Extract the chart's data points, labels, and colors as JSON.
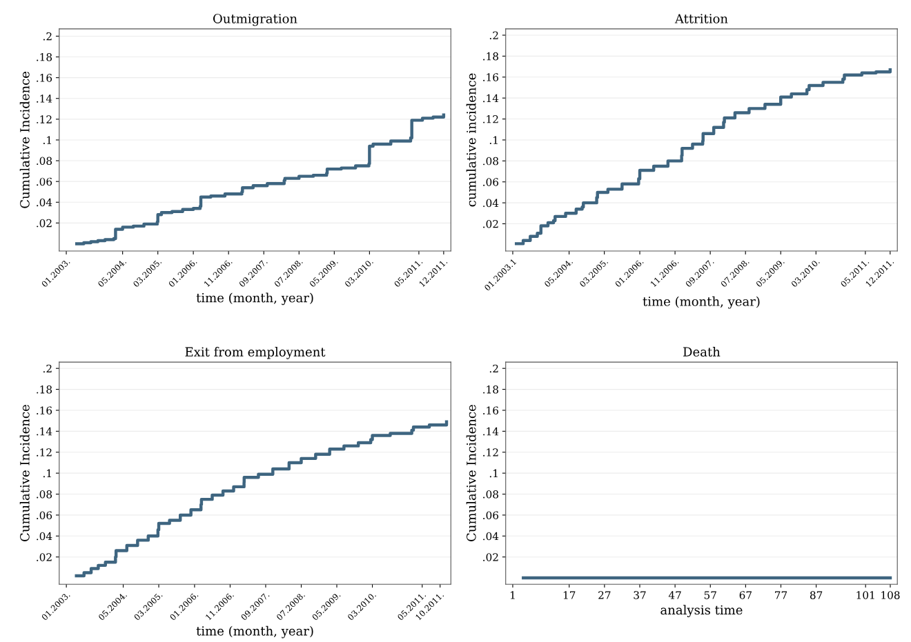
{
  "chart_data": [
    {
      "type": "step",
      "title": "Outmigration",
      "xlabel": "time (month, year)",
      "ylabel": "Cumulative Incidence",
      "color": "#3e6580",
      "grid": "y",
      "xlim": [
        "2002-11",
        "2012-02"
      ],
      "ylim": [
        -0.007,
        0.207
      ],
      "xticks": [
        {
          "value": "2003-01",
          "label": "01.2003."
        },
        {
          "value": "2004-05",
          "label": "05.2004."
        },
        {
          "value": "2005-03",
          "label": "03.2005."
        },
        {
          "value": "2006-01",
          "label": "01.2006."
        },
        {
          "value": "2006-11",
          "label": "11.2006."
        },
        {
          "value": "2007-09",
          "label": "09.2007."
        },
        {
          "value": "2008-07",
          "label": "07.2008."
        },
        {
          "value": "2009-05",
          "label": "05.2009."
        },
        {
          "value": "2010-03",
          "label": "03.2010."
        },
        {
          "value": "2011-05",
          "label": "05.2011."
        },
        {
          "value": "2011-12",
          "label": "12.2011."
        }
      ],
      "yticks": [
        {
          "value": 0.02,
          "label": ".02"
        },
        {
          "value": 0.04,
          "label": ".04"
        },
        {
          "value": 0.06,
          "label": ".06"
        },
        {
          "value": 0.08,
          "label": ".08"
        },
        {
          "value": 0.1,
          "label": ".1"
        },
        {
          "value": 0.12,
          "label": ".12"
        },
        {
          "value": 0.14,
          "label": ".14"
        },
        {
          "value": 0.16,
          "label": ".16"
        },
        {
          "value": 0.18,
          "label": ".18"
        },
        {
          "value": 0.2,
          "label": ".2"
        }
      ],
      "x": [
        "2003-04-01",
        "2003-06-01",
        "2003-08-01",
        "2003-10-01",
        "2003-12-01",
        "2004-02-15",
        "2004-03-01",
        "2004-05-01",
        "2004-08-01",
        "2004-11-01",
        "2005-02-24",
        "2005-03-01",
        "2005-04-01",
        "2005-07-01",
        "2005-10-01",
        "2006-01-01",
        "2006-03-01",
        "2006-03-07",
        "2006-06-01",
        "2006-10-01",
        "2007-02-24",
        "2007-03-01",
        "2007-06-01",
        "2007-10-01",
        "2008-02-24",
        "2008-03-01",
        "2008-07-01",
        "2008-11-01",
        "2009-02-24",
        "2009-03-01",
        "2009-07-01",
        "2009-11-01",
        "2010-02-24",
        "2010-03-01",
        "2010-04-01",
        "2010-09-01",
        "2011-02-19",
        "2011-03-01",
        "2011-06-01",
        "2011-09-01",
        "2011-12-01"
      ],
      "values": [
        0,
        0.001,
        0.002,
        0.003,
        0.004,
        0.005,
        0.014,
        0.016,
        0.017,
        0.019,
        0.021,
        0.028,
        0.03,
        0.031,
        0.033,
        0.034,
        0.036,
        0.045,
        0.046,
        0.048,
        0.05,
        0.054,
        0.056,
        0.058,
        0.061,
        0.063,
        0.065,
        0.066,
        0.068,
        0.072,
        0.073,
        0.075,
        0.077,
        0.094,
        0.096,
        0.099,
        0.102,
        0.119,
        0.121,
        0.122,
        0.124
      ]
    },
    {
      "type": "step",
      "title": "Attrition",
      "xlabel": "time (month, year)",
      "ylabel": "cumulative incidence",
      "color": "#3e6580",
      "grid": "y",
      "xlim": [
        "2002-11",
        "2012-02"
      ],
      "ylim": [
        -0.006,
        0.206
      ],
      "xticks": [
        {
          "value": "2003-01",
          "label": "01.2003.1"
        },
        {
          "value": "2004-05",
          "label": "05.2004."
        },
        {
          "value": "2005-03",
          "label": "03.2005."
        },
        {
          "value": "2006-01",
          "label": "01.2006."
        },
        {
          "value": "2006-11",
          "label": "11.2006."
        },
        {
          "value": "2007-09",
          "label": "09.2007."
        },
        {
          "value": "2008-07",
          "label": "07.2008."
        },
        {
          "value": "2009-05",
          "label": "05.2009."
        },
        {
          "value": "2010-03",
          "label": "03.2010."
        },
        {
          "value": "2011-05",
          "label": "05.2011."
        },
        {
          "value": "2011-12",
          "label": "12.2011."
        }
      ],
      "yticks": [
        {
          "value": 0.02,
          "label": ".02"
        },
        {
          "value": 0.04,
          "label": ".04"
        },
        {
          "value": 0.06,
          "label": ".06"
        },
        {
          "value": 0.08,
          "label": ".08"
        },
        {
          "value": 0.1,
          "label": ".1"
        },
        {
          "value": 0.12,
          "label": ".12"
        },
        {
          "value": 0.14,
          "label": ".14"
        },
        {
          "value": 0.16,
          "label": ".16"
        },
        {
          "value": 0.18,
          "label": ".18"
        },
        {
          "value": 0.2,
          "label": ".2"
        }
      ],
      "x": [
        "2003-02-01",
        "2003-04-01",
        "2003-06-01",
        "2003-08-01",
        "2003-09-01",
        "2003-11-01",
        "2003-12-19",
        "2004-01-01",
        "2004-04-01",
        "2004-07-01",
        "2004-08-22",
        "2004-09-01",
        "2004-12-25",
        "2005-01-01",
        "2005-04-01",
        "2005-08-01",
        "2005-12-22",
        "2006-01-01",
        "2006-05-01",
        "2006-09-01",
        "2006-12-28",
        "2007-01-01",
        "2007-04-01",
        "2007-06-28",
        "2007-07-01",
        "2007-10-01",
        "2007-12-25",
        "2008-01-01",
        "2008-04-01",
        "2008-08-01",
        "2008-12-16",
        "2009-05-01",
        "2009-08-01",
        "2009-12-13",
        "2010-01-01",
        "2010-05-01",
        "2010-10-19",
        "2010-11-01",
        "2011-04-01",
        "2011-08-01",
        "2011-12-01"
      ],
      "values": [
        0.001,
        0.004,
        0.008,
        0.011,
        0.018,
        0.021,
        0.023,
        0.027,
        0.03,
        0.034,
        0.036,
        0.04,
        0.045,
        0.05,
        0.053,
        0.058,
        0.063,
        0.071,
        0.075,
        0.08,
        0.085,
        0.092,
        0.096,
        0.099,
        0.106,
        0.112,
        0.117,
        0.121,
        0.126,
        0.13,
        0.134,
        0.141,
        0.144,
        0.148,
        0.152,
        0.155,
        0.158,
        0.162,
        0.164,
        0.165,
        0.167
      ]
    },
    {
      "type": "step",
      "title": "Exit from employment",
      "xlabel": "time (month, year)",
      "ylabel": "Cumulative Incidence",
      "color": "#3e6580",
      "grid": "y",
      "xlim": [
        "2002-11",
        "2012-01"
      ],
      "ylim": [
        -0.006,
        0.206
      ],
      "xticks": [
        {
          "value": "2003-01",
          "label": "01.2003."
        },
        {
          "value": "2004-05",
          "label": "05.2004."
        },
        {
          "value": "2005-03",
          "label": "03.2005."
        },
        {
          "value": "2006-01",
          "label": "01.2006."
        },
        {
          "value": "2006-11",
          "label": "11.2006."
        },
        {
          "value": "2007-09",
          "label": "09.2007."
        },
        {
          "value": "2008-07",
          "label": "07.2008."
        },
        {
          "value": "2009-05",
          "label": "05.2009."
        },
        {
          "value": "2010-03",
          "label": "03.2010."
        },
        {
          "value": "2011-05",
          "label": "05.2011."
        },
        {
          "value": "2011-10",
          "label": "10.2011."
        }
      ],
      "yticks": [
        {
          "value": 0.02,
          "label": ".02"
        },
        {
          "value": 0.04,
          "label": ".04"
        },
        {
          "value": 0.06,
          "label": ".06"
        },
        {
          "value": 0.08,
          "label": ".08"
        },
        {
          "value": 0.1,
          "label": ".1"
        },
        {
          "value": 0.12,
          "label": ".12"
        },
        {
          "value": 0.14,
          "label": ".14"
        },
        {
          "value": 0.16,
          "label": ".16"
        },
        {
          "value": 0.18,
          "label": ".18"
        },
        {
          "value": 0.2,
          "label": ".2"
        }
      ],
      "x": [
        "2003-03-28",
        "2003-06-01",
        "2003-08-01",
        "2003-10-01",
        "2003-12-01",
        "2004-02-25",
        "2004-03-01",
        "2004-06-01",
        "2004-09-01",
        "2004-12-01",
        "2005-02-22",
        "2005-03-01",
        "2005-06-01",
        "2005-09-01",
        "2005-12-01",
        "2006-02-25",
        "2006-03-01",
        "2006-06-01",
        "2006-09-01",
        "2006-12-01",
        "2007-02-28",
        "2007-03-01",
        "2007-07-01",
        "2007-11-01",
        "2008-03-19",
        "2008-07-01",
        "2008-11-01",
        "2009-03-01",
        "2009-07-01",
        "2009-11-01",
        "2010-02-15",
        "2010-03-01",
        "2010-08-01",
        "2011-02-01",
        "2011-02-15",
        "2011-07-01",
        "2011-11-25"
      ],
      "values": [
        0.002,
        0.005,
        0.009,
        0.012,
        0.015,
        0.02,
        0.026,
        0.031,
        0.036,
        0.04,
        0.046,
        0.052,
        0.055,
        0.06,
        0.065,
        0.07,
        0.075,
        0.079,
        0.083,
        0.087,
        0.091,
        0.096,
        0.099,
        0.104,
        0.11,
        0.114,
        0.118,
        0.123,
        0.126,
        0.129,
        0.132,
        0.136,
        0.138,
        0.141,
        0.144,
        0.146,
        0.149
      ]
    },
    {
      "type": "step",
      "title": "Death",
      "xlabel": "analysis time",
      "ylabel": "Cumulative Incidence",
      "color": "#3e6580",
      "grid": "y",
      "xlim": [
        -1,
        110
      ],
      "ylim": [
        -0.006,
        0.206
      ],
      "xticks": [
        1,
        17,
        27,
        37,
        47,
        57,
        67,
        77,
        87,
        101,
        108
      ],
      "yticks": [
        {
          "value": 0.02,
          "label": ".02"
        },
        {
          "value": 0.04,
          "label": ".04"
        },
        {
          "value": 0.06,
          "label": ".06"
        },
        {
          "value": 0.08,
          "label": ".08"
        },
        {
          "value": 0.1,
          "label": ".1"
        },
        {
          "value": 0.12,
          "label": ".12"
        },
        {
          "value": 0.14,
          "label": ".14"
        },
        {
          "value": 0.16,
          "label": ".16"
        },
        {
          "value": 0.18,
          "label": ".18"
        },
        {
          "value": 0.2,
          "label": ".2"
        }
      ],
      "x": [
        4,
        108
      ],
      "values": [
        0,
        0
      ]
    }
  ]
}
